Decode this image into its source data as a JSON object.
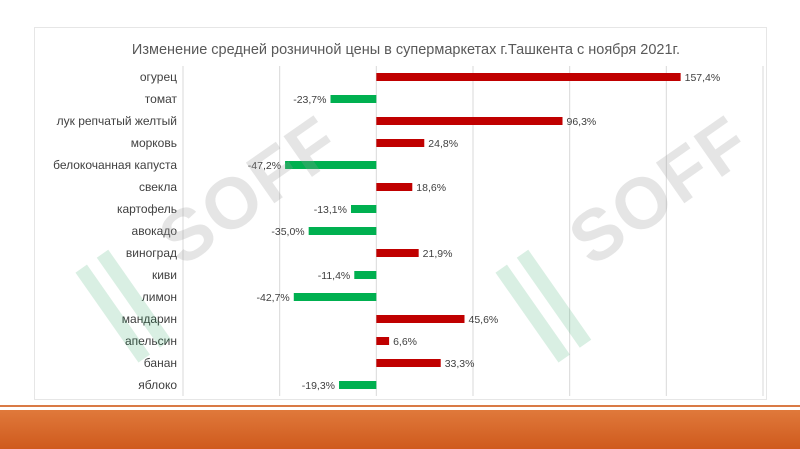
{
  "watermark_text": "SOFF",
  "chart_data": {
    "type": "bar",
    "orientation": "horizontal",
    "title": "Изменение средней розничной цены в супермаркетах г.Ташкента с ноября 2021г.",
    "xlabel": "",
    "ylabel": "",
    "categories": [
      "огурец",
      "томат",
      "лук репчатый желтый",
      "морковь",
      "белокочанная капуста",
      "свекла",
      "картофель",
      "авокадо",
      "виноград",
      "киви",
      "лимон",
      "мандарин",
      "апельсин",
      "банан",
      "яблоко"
    ],
    "values": [
      157.4,
      -23.7,
      96.3,
      24.8,
      -47.2,
      18.6,
      -13.1,
      -35.0,
      21.9,
      -11.4,
      -42.7,
      45.6,
      6.6,
      33.3,
      -19.3
    ],
    "data_labels": [
      "157,4%",
      "-23,7%",
      "96,3%",
      "24,8%",
      "-47,2%",
      "18,6%",
      "-13,1%",
      "-35,0%",
      "21,9%",
      "-11,4%",
      "-42,7%",
      "45,6%",
      "6,6%",
      "33,3%",
      "-19,3%"
    ],
    "xlim": [
      -100,
      200
    ],
    "grid": true,
    "legend": "none",
    "colors": {
      "positive": "#c00000",
      "negative": "#00b050"
    }
  }
}
